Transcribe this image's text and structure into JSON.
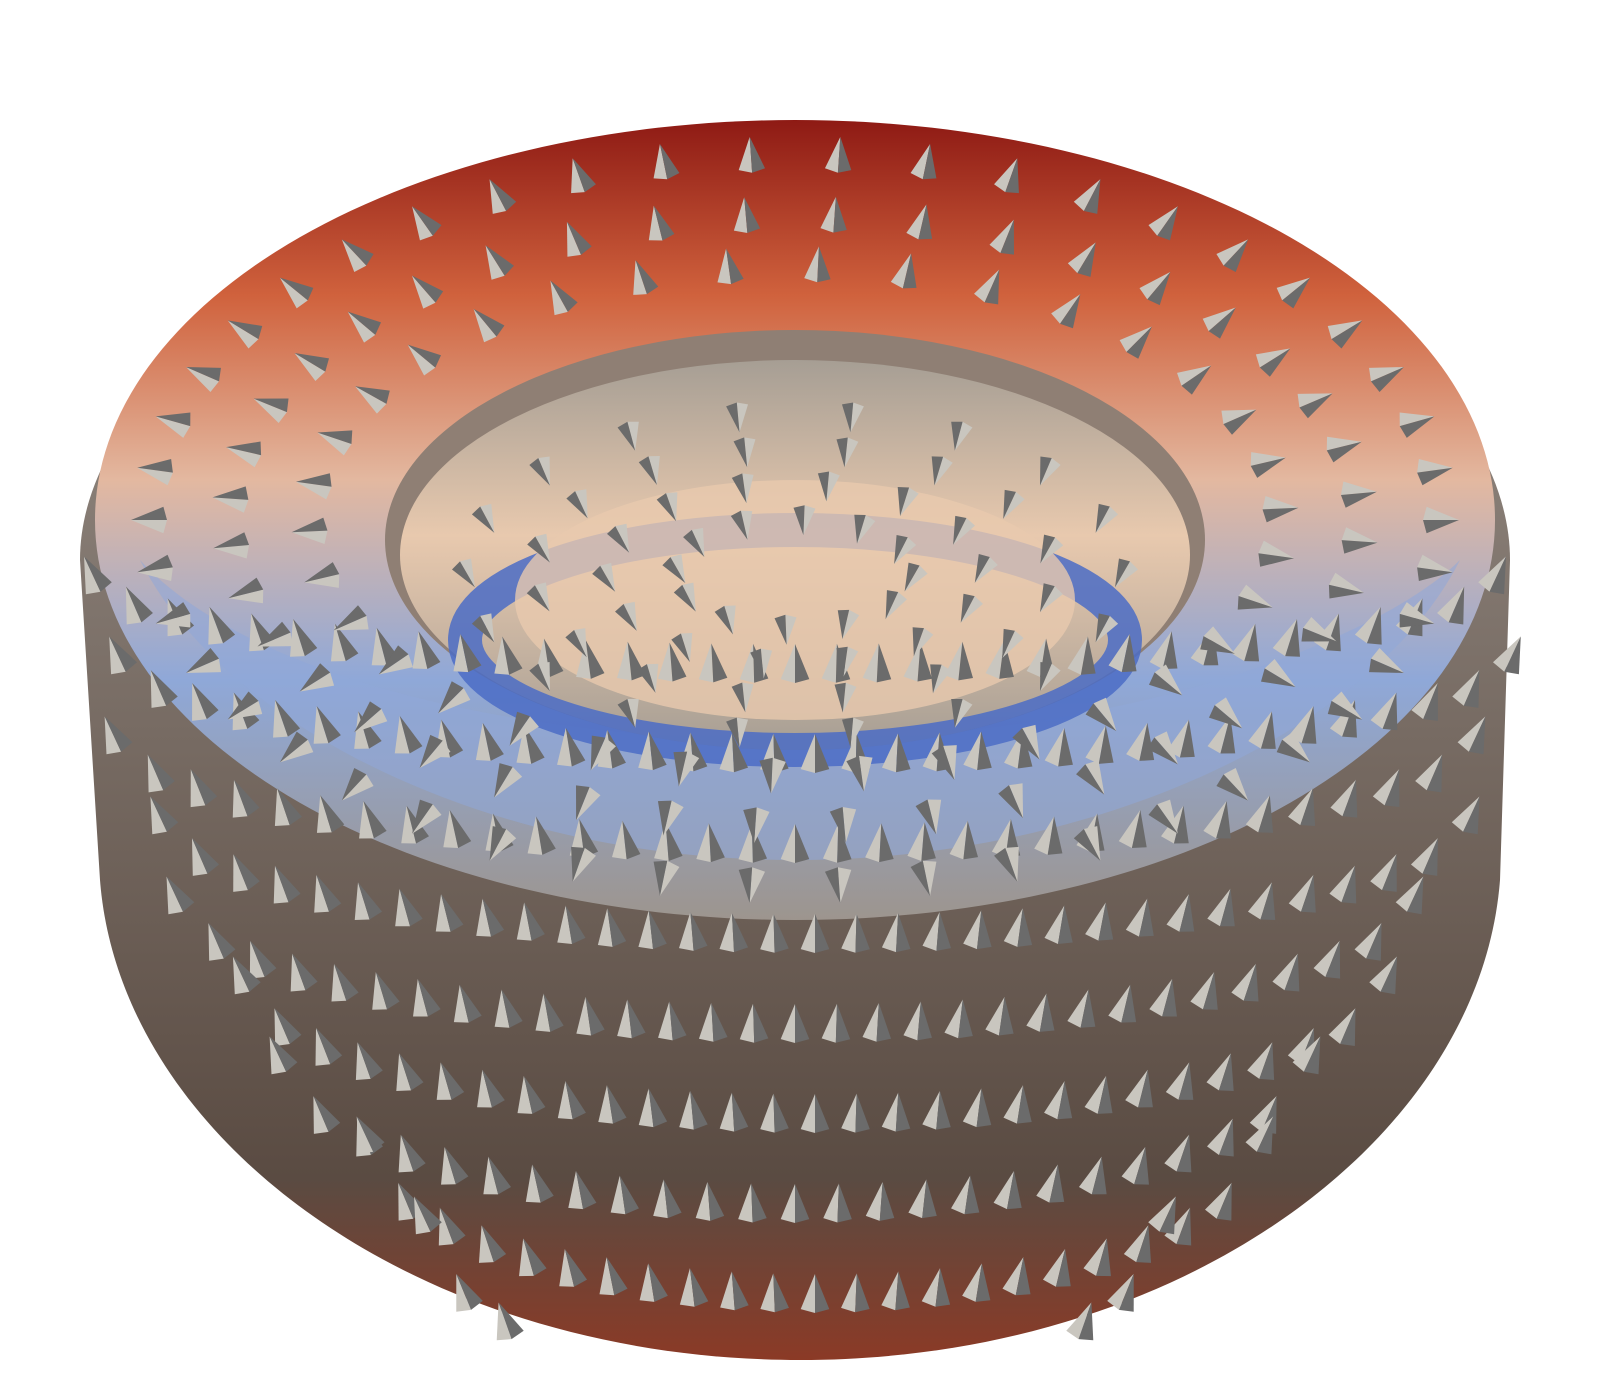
{
  "scene": {
    "object": "torus",
    "glyph_shape": "cone",
    "background_color": "#ffffff",
    "glyph_color": "#c9c6bf",
    "glyph_shadow_color": "#6b6b6b",
    "colormap": {
      "name": "cool-to-warm",
      "low": "#3b4fa8",
      "mid": "#dcd6cf",
      "high": "#b4230f"
    },
    "shading_colors": {
      "outer_wall_top": "#9d958e",
      "outer_wall_bottom": "#5a4b42",
      "outer_wall_rim": "#8b3a26",
      "top_far_band": "#d0623d",
      "top_far_deep": "#8e1a14",
      "top_side_band": "#e3b8a0",
      "top_near_band": "#8fa8d8",
      "inner_blue_band": "#4b6cc6",
      "hole_wall": "#a69e94",
      "hole_floor": "#e8c9ae"
    }
  }
}
